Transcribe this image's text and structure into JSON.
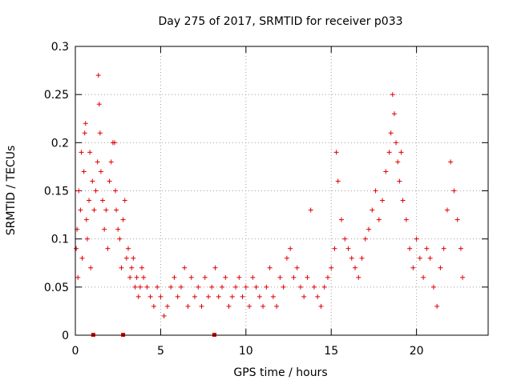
{
  "chart_data": {
    "type": "scatter",
    "title": "Day 275 of 2017, SRMTID for receiver p033",
    "xlabel": "GPS time / hours",
    "ylabel": "SRMTID / TECUs",
    "xlim": [
      0,
      24.2
    ],
    "ylim": [
      0,
      0.3
    ],
    "xticks": [
      0,
      5,
      10,
      15,
      20
    ],
    "yticks": [
      0,
      0.05,
      0.1,
      0.15,
      0.2,
      0.25,
      0.3
    ],
    "xtick_labels": [
      "0",
      "5",
      "10",
      "15",
      "20"
    ],
    "ytick_labels": [
      "0",
      "0.05",
      "0.1",
      "0.15",
      "0.2",
      "0.25",
      "0.3"
    ],
    "grid": true,
    "marker": "plus",
    "color": "#e00000",
    "series": [
      {
        "name": "SRMTID",
        "x": [
          0.05,
          0.1,
          0.15,
          0.2,
          0.3,
          0.35,
          0.4,
          0.5,
          0.55,
          0.6,
          0.65,
          0.7,
          0.8,
          0.85,
          0.9,
          1.0,
          1.1,
          1.2,
          1.3,
          1.35,
          1.4,
          1.45,
          1.5,
          1.6,
          1.7,
          1.8,
          1.9,
          2.0,
          2.1,
          2.2,
          2.3,
          2.35,
          2.4,
          2.5,
          2.6,
          2.7,
          2.8,
          2.9,
          3.0,
          3.1,
          3.2,
          3.3,
          3.4,
          3.5,
          3.6,
          3.7,
          3.8,
          3.9,
          4.0,
          4.2,
          4.4,
          4.6,
          4.8,
          5.0,
          5.2,
          5.4,
          5.6,
          5.8,
          6.0,
          6.2,
          6.4,
          6.6,
          6.8,
          7.0,
          7.2,
          7.4,
          7.6,
          7.8,
          8.0,
          8.2,
          8.4,
          8.6,
          8.8,
          9.0,
          9.2,
          9.4,
          9.6,
          9.8,
          10.0,
          10.2,
          10.4,
          10.6,
          10.8,
          11.0,
          11.2,
          11.4,
          11.6,
          11.8,
          12.0,
          12.2,
          12.4,
          12.6,
          12.8,
          13.0,
          13.2,
          13.4,
          13.6,
          13.8,
          14.0,
          14.2,
          14.4,
          14.6,
          14.8,
          15.0,
          15.2,
          15.3,
          15.4,
          15.6,
          15.8,
          16.0,
          16.2,
          16.4,
          16.6,
          16.8,
          17.0,
          17.2,
          17.4,
          17.6,
          17.8,
          18.0,
          18.2,
          18.4,
          18.5,
          18.6,
          18.7,
          18.8,
          18.9,
          19.0,
          19.1,
          19.2,
          19.4,
          19.6,
          19.8,
          20.0,
          20.2,
          20.4,
          20.6,
          20.8,
          21.0,
          21.2,
          21.4,
          21.6,
          21.8,
          22.0,
          22.2,
          22.4,
          22.6,
          22.7
        ],
        "y": [
          0.09,
          0.11,
          0.06,
          0.15,
          0.13,
          0.19,
          0.08,
          0.17,
          0.21,
          0.22,
          0.12,
          0.1,
          0.14,
          0.19,
          0.07,
          0.16,
          0.13,
          0.15,
          0.18,
          0.27,
          0.24,
          0.21,
          0.17,
          0.14,
          0.11,
          0.13,
          0.09,
          0.16,
          0.18,
          0.2,
          0.2,
          0.15,
          0.13,
          0.11,
          0.1,
          0.07,
          0.12,
          0.14,
          0.08,
          0.09,
          0.06,
          0.07,
          0.08,
          0.05,
          0.06,
          0.04,
          0.05,
          0.07,
          0.06,
          0.05,
          0.04,
          0.03,
          0.05,
          0.04,
          0.02,
          0.03,
          0.05,
          0.06,
          0.04,
          0.05,
          0.07,
          0.03,
          0.06,
          0.04,
          0.05,
          0.03,
          0.06,
          0.04,
          0.05,
          0.07,
          0.04,
          0.05,
          0.06,
          0.03,
          0.04,
          0.05,
          0.06,
          0.04,
          0.05,
          0.03,
          0.06,
          0.05,
          0.04,
          0.03,
          0.05,
          0.07,
          0.04,
          0.03,
          0.06,
          0.05,
          0.08,
          0.09,
          0.06,
          0.07,
          0.05,
          0.04,
          0.06,
          0.13,
          0.05,
          0.04,
          0.03,
          0.05,
          0.06,
          0.07,
          0.09,
          0.19,
          0.16,
          0.12,
          0.1,
          0.09,
          0.08,
          0.07,
          0.06,
          0.08,
          0.1,
          0.11,
          0.13,
          0.15,
          0.12,
          0.14,
          0.17,
          0.19,
          0.21,
          0.25,
          0.23,
          0.2,
          0.18,
          0.16,
          0.19,
          0.14,
          0.12,
          0.09,
          0.07,
          0.1,
          0.08,
          0.06,
          0.09,
          0.08,
          0.05,
          0.03,
          0.07,
          0.09,
          0.13,
          0.18,
          0.15,
          0.12,
          0.09,
          0.06
        ]
      }
    ],
    "gap_markers_x": [
      1.05,
      2.8,
      8.15
    ]
  }
}
